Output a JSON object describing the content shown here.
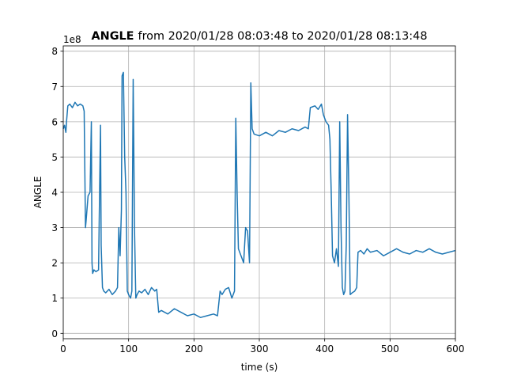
{
  "chart_data": {
    "type": "line",
    "title": {
      "bold": "ANGLE",
      "text": "from 2020/01/28 08:03:48 to 2020/01/28 08:13:48"
    },
    "xlabel": "time (s)",
    "ylabel": "ANGLE",
    "y_offset_label": "1e8",
    "xlim": [
      0,
      600
    ],
    "xticks": [
      0,
      100,
      200,
      300,
      400,
      500,
      600
    ],
    "ylim": [
      -0.15,
      8.15
    ],
    "yticks": [
      0,
      1,
      2,
      3,
      4,
      5,
      6,
      7,
      8
    ],
    "grid": true,
    "series": [
      {
        "name": "ANGLE",
        "color": "#1f77b4",
        "x": [
          0,
          2,
          4,
          5,
          7,
          10,
          14,
          18,
          22,
          26,
          30,
          32,
          34,
          35,
          38,
          41,
          43,
          44,
          45,
          47,
          50,
          54,
          57,
          58,
          60,
          62,
          65,
          70,
          75,
          80,
          83,
          85,
          87,
          89,
          90,
          92,
          94,
          96,
          98,
          100,
          103,
          105,
          107,
          109,
          111,
          113,
          116,
          120,
          125,
          130,
          135,
          140,
          143,
          146,
          150,
          160,
          170,
          180,
          190,
          200,
          210,
          220,
          230,
          236,
          240,
          243,
          248,
          253,
          258,
          262,
          264,
          266,
          268,
          272,
          276,
          279,
          282,
          285,
          287,
          289,
          292,
          300,
          310,
          320,
          330,
          340,
          350,
          360,
          370,
          375,
          378,
          385,
          390,
          395,
          398,
          402,
          406,
          408,
          410,
          412,
          415,
          418,
          421,
          423,
          425,
          427,
          429,
          431,
          433,
          435,
          437,
          439,
          442,
          446,
          449,
          451,
          455,
          460,
          465,
          470,
          480,
          490,
          500,
          510,
          520,
          530,
          540,
          550,
          560,
          570,
          580,
          590,
          600
        ],
        "values": [
          5.8,
          5.9,
          5.7,
          6.0,
          6.45,
          6.5,
          6.4,
          6.55,
          6.45,
          6.5,
          6.45,
          6.3,
          3.0,
          3.2,
          3.9,
          4.0,
          6.0,
          2.0,
          1.7,
          1.8,
          1.75,
          1.8,
          5.9,
          2.5,
          1.3,
          1.2,
          1.15,
          1.25,
          1.1,
          1.2,
          1.3,
          3.0,
          2.2,
          3.5,
          7.3,
          7.4,
          5.0,
          4.0,
          1.2,
          1.1,
          1.0,
          1.2,
          7.2,
          3.0,
          1.0,
          1.1,
          1.2,
          1.15,
          1.25,
          1.1,
          1.3,
          1.2,
          1.25,
          0.6,
          0.65,
          0.55,
          0.7,
          0.6,
          0.5,
          0.55,
          0.45,
          0.5,
          0.55,
          0.5,
          1.2,
          1.1,
          1.25,
          1.3,
          1.0,
          1.2,
          6.1,
          4.0,
          2.4,
          2.2,
          2.0,
          3.0,
          2.9,
          2.0,
          7.1,
          5.8,
          5.65,
          5.6,
          5.7,
          5.6,
          5.75,
          5.7,
          5.8,
          5.75,
          5.85,
          5.8,
          6.4,
          6.45,
          6.35,
          6.5,
          6.2,
          6.0,
          5.9,
          5.5,
          4.0,
          2.2,
          2.0,
          2.4,
          1.9,
          6.0,
          3.0,
          1.3,
          1.1,
          1.2,
          2.5,
          6.2,
          4.0,
          1.1,
          1.15,
          1.2,
          1.3,
          2.3,
          2.35,
          2.25,
          2.4,
          2.3,
          2.35,
          2.2,
          2.3,
          2.4,
          2.3,
          2.25,
          2.35,
          2.3,
          2.4,
          2.3,
          2.25,
          2.3,
          2.35
        ]
      }
    ]
  }
}
